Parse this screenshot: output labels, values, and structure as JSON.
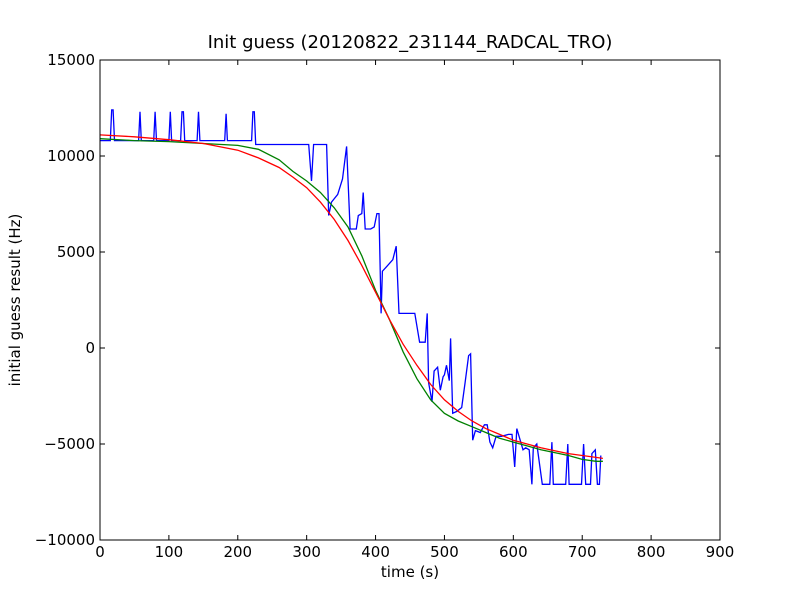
{
  "chart_data": {
    "type": "line",
    "title": "Init guess (20120822_231144_RADCAL_TRO)",
    "xlabel": "time (s)",
    "ylabel": "initial guess result (Hz)",
    "xlim": [
      0,
      900
    ],
    "ylim": [
      -10000,
      15000
    ],
    "x_ticks": [
      "0",
      "100",
      "200",
      "300",
      "400",
      "500",
      "600",
      "700",
      "800",
      "900"
    ],
    "y_ticks": [
      "−10000",
      "−5000",
      "0",
      "5000",
      "10000",
      "15000"
    ],
    "x_tick_values": [
      0,
      100,
      200,
      300,
      400,
      500,
      600,
      700,
      800,
      900
    ],
    "y_tick_values": [
      -10000,
      -5000,
      0,
      5000,
      10000,
      15000
    ],
    "grid": false,
    "series": [
      {
        "color": "#0000ff",
        "points": [
          [
            0,
            10800
          ],
          [
            15,
            10800
          ],
          [
            17,
            12400
          ],
          [
            19,
            12400
          ],
          [
            21,
            10800
          ],
          [
            56,
            10800
          ],
          [
            58,
            12300
          ],
          [
            60,
            10800
          ],
          [
            78,
            10800
          ],
          [
            80,
            12300
          ],
          [
            82,
            10800
          ],
          [
            100,
            10800
          ],
          [
            102,
            12300
          ],
          [
            104,
            10800
          ],
          [
            117,
            10800
          ],
          [
            119,
            12300
          ],
          [
            121,
            12300
          ],
          [
            123,
            10800
          ],
          [
            141,
            10800
          ],
          [
            143,
            12300
          ],
          [
            145,
            10800
          ],
          [
            181,
            10800
          ],
          [
            183,
            12200
          ],
          [
            185,
            10800
          ],
          [
            220,
            10800
          ],
          [
            222,
            12300
          ],
          [
            224,
            12300
          ],
          [
            226,
            10600
          ],
          [
            303,
            10600
          ],
          [
            307,
            8700
          ],
          [
            310,
            10600
          ],
          [
            329,
            10600
          ],
          [
            332,
            6900
          ],
          [
            336,
            7600
          ],
          [
            345,
            8000
          ],
          [
            352,
            8800
          ],
          [
            358,
            10500
          ],
          [
            363,
            6200
          ],
          [
            372,
            6200
          ],
          [
            375,
            6900
          ],
          [
            380,
            7000
          ],
          [
            382,
            8100
          ],
          [
            385,
            6200
          ],
          [
            393,
            6200
          ],
          [
            398,
            6300
          ],
          [
            402,
            7000
          ],
          [
            405,
            7000
          ],
          [
            408,
            1800
          ],
          [
            410,
            4000
          ],
          [
            415,
            4200
          ],
          [
            425,
            4600
          ],
          [
            430,
            5300
          ],
          [
            434,
            1800
          ],
          [
            457,
            1800
          ],
          [
            464,
            300
          ],
          [
            472,
            300
          ],
          [
            475,
            1800
          ],
          [
            477,
            -1800
          ],
          [
            482,
            -2800
          ],
          [
            485,
            -1200
          ],
          [
            490,
            -1000
          ],
          [
            494,
            -2200
          ],
          [
            498,
            -1500
          ],
          [
            500,
            -1400
          ],
          [
            503,
            -900
          ],
          [
            507,
            -1700
          ],
          [
            509,
            500
          ],
          [
            512,
            -3400
          ],
          [
            518,
            -3300
          ],
          [
            525,
            -3100
          ],
          [
            530,
            -1800
          ],
          [
            535,
            -400
          ],
          [
            538,
            -300
          ],
          [
            541,
            -4800
          ],
          [
            545,
            -4300
          ],
          [
            552,
            -4400
          ],
          [
            558,
            -4000
          ],
          [
            562,
            -4000
          ],
          [
            566,
            -4900
          ],
          [
            570,
            -5200
          ],
          [
            575,
            -4600
          ],
          [
            583,
            -4600
          ],
          [
            593,
            -4500
          ],
          [
            598,
            -4500
          ],
          [
            602,
            -6200
          ],
          [
            605,
            -4200
          ],
          [
            614,
            -5300
          ],
          [
            618,
            -5200
          ],
          [
            623,
            -5300
          ],
          [
            627,
            -7100
          ],
          [
            629,
            -5200
          ],
          [
            634,
            -5000
          ],
          [
            642,
            -7100
          ],
          [
            653,
            -7100
          ],
          [
            656,
            -4900
          ],
          [
            658,
            -7100
          ],
          [
            676,
            -7100
          ],
          [
            679,
            -5000
          ],
          [
            681,
            -7100
          ],
          [
            699,
            -7100
          ],
          [
            702,
            -5000
          ],
          [
            705,
            -7100
          ],
          [
            712,
            -7100
          ],
          [
            714,
            -5500
          ],
          [
            719,
            -5300
          ],
          [
            722,
            -7100
          ],
          [
            725,
            -7100
          ],
          [
            727,
            -5600
          ]
        ]
      },
      {
        "color": "#008000",
        "points": [
          [
            0,
            10900
          ],
          [
            50,
            10800
          ],
          [
            100,
            10750
          ],
          [
            150,
            10650
          ],
          [
            200,
            10550
          ],
          [
            230,
            10350
          ],
          [
            260,
            9800
          ],
          [
            280,
            9200
          ],
          [
            300,
            8700
          ],
          [
            320,
            8100
          ],
          [
            340,
            7300
          ],
          [
            360,
            6300
          ],
          [
            380,
            4800
          ],
          [
            400,
            3000
          ],
          [
            420,
            1500
          ],
          [
            440,
            -200
          ],
          [
            460,
            -1600
          ],
          [
            480,
            -2700
          ],
          [
            500,
            -3400
          ],
          [
            520,
            -3800
          ],
          [
            540,
            -4100
          ],
          [
            560,
            -4400
          ],
          [
            580,
            -4700
          ],
          [
            600,
            -4900
          ],
          [
            620,
            -5100
          ],
          [
            640,
            -5300
          ],
          [
            660,
            -5450
          ],
          [
            680,
            -5600
          ],
          [
            700,
            -5800
          ],
          [
            720,
            -5900
          ],
          [
            730,
            -5900
          ]
        ]
      },
      {
        "color": "#ff0000",
        "points": [
          [
            0,
            11100
          ],
          [
            50,
            11000
          ],
          [
            100,
            10850
          ],
          [
            150,
            10650
          ],
          [
            200,
            10300
          ],
          [
            230,
            9900
          ],
          [
            260,
            9400
          ],
          [
            280,
            8900
          ],
          [
            300,
            8350
          ],
          [
            320,
            7600
          ],
          [
            340,
            6700
          ],
          [
            360,
            5600
          ],
          [
            380,
            4300
          ],
          [
            400,
            2900
          ],
          [
            420,
            1500
          ],
          [
            440,
            200
          ],
          [
            460,
            -900
          ],
          [
            480,
            -1900
          ],
          [
            500,
            -2700
          ],
          [
            520,
            -3300
          ],
          [
            540,
            -3800
          ],
          [
            560,
            -4200
          ],
          [
            580,
            -4500
          ],
          [
            600,
            -4800
          ],
          [
            620,
            -5000
          ],
          [
            640,
            -5200
          ],
          [
            660,
            -5350
          ],
          [
            680,
            -5500
          ],
          [
            700,
            -5600
          ],
          [
            720,
            -5700
          ],
          [
            730,
            -5750
          ]
        ]
      }
    ]
  }
}
